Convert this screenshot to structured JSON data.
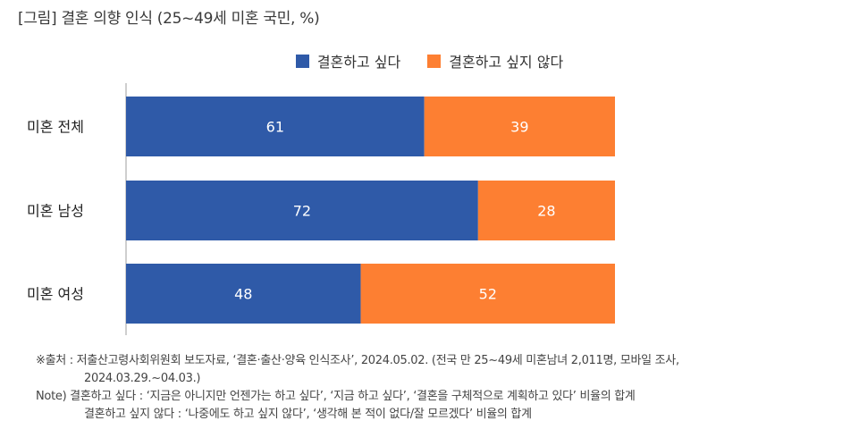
{
  "title": "[그림] 결혼 의향 인식 (25~49세 미혼 국민, %)",
  "legend": [
    {
      "label": "결혼하고 싶다",
      "color": "#2f5aa8"
    },
    {
      "label": "결혼하고 싶지 않다",
      "color": "#fd7f32"
    }
  ],
  "chart_data": {
    "type": "bar",
    "orientation": "horizontal-stacked",
    "categories": [
      "미혼 전체",
      "미혼 남성",
      "미혼 여성"
    ],
    "series": [
      {
        "name": "결혼하고 싶다",
        "values": [
          61,
          72,
          48
        ],
        "color": "#2f5aa8"
      },
      {
        "name": "결혼하고 싶지 않다",
        "values": [
          39,
          28,
          52
        ],
        "color": "#fd7f32"
      }
    ],
    "xlim": [
      0,
      100
    ],
    "data_labels": true,
    "grid": false,
    "legend_position": "top"
  },
  "footnotes": [
    "※출처 : 저출산고령사회위원회 보도자료, ‘결혼·출산·양육 인식조사’, 2024.05.02. (전국 만 25~49세 미혼남녀 2,011명, 모바일 조사,",
    "2024.03.29.~04.03.)",
    "Note) 결혼하고 싶다 : ‘지금은 아니지만 언젠가는 하고 싶다’, ‘지금 하고 싶다’, ‘결혼을 구체적으로 계획하고 있다’ 비율의 합계",
    "결혼하고 싶지 않다 : ‘나중에도 하고 싶지 않다’, ‘생각해 본 적이 없다/잘 모르겠다’ 비율의 합계"
  ]
}
